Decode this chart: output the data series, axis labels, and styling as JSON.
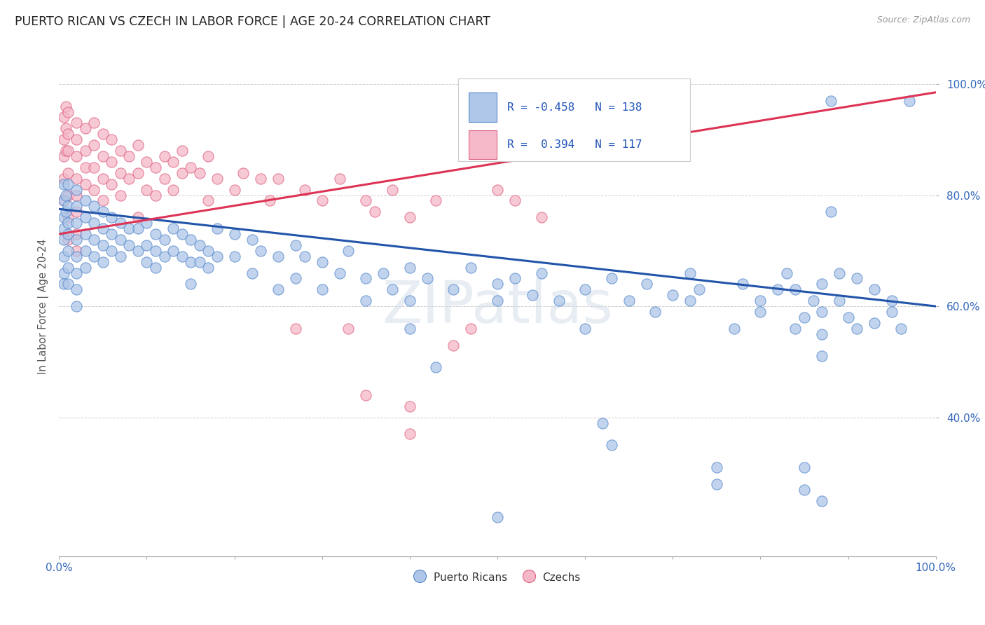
{
  "title": "PUERTO RICAN VS CZECH IN LABOR FORCE | AGE 20-24 CORRELATION CHART",
  "source_text": "Source: ZipAtlas.com",
  "ylabel": "In Labor Force | Age 20-24",
  "xlim": [
    0.0,
    1.0
  ],
  "ylim": [
    0.15,
    1.05
  ],
  "blue_color": "#aec6e8",
  "pink_color": "#f4b8c8",
  "blue_edge": "#5588cc",
  "pink_edge": "#e06080",
  "blue_line_color": "#2255aa",
  "pink_line_color": "#dd3355",
  "r_blue": -0.458,
  "n_blue": 138,
  "r_pink": 0.394,
  "n_pink": 117,
  "watermark": "ZIPatlas",
  "bg_color": "#ffffff",
  "grid_color": "#bbbbbb",
  "blue_scatter": [
    [
      0.005,
      0.82
    ],
    [
      0.005,
      0.79
    ],
    [
      0.005,
      0.76
    ],
    [
      0.005,
      0.74
    ],
    [
      0.005,
      0.72
    ],
    [
      0.005,
      0.69
    ],
    [
      0.005,
      0.66
    ],
    [
      0.005,
      0.64
    ],
    [
      0.008,
      0.8
    ],
    [
      0.008,
      0.77
    ],
    [
      0.01,
      0.82
    ],
    [
      0.01,
      0.78
    ],
    [
      0.01,
      0.75
    ],
    [
      0.01,
      0.73
    ],
    [
      0.01,
      0.7
    ],
    [
      0.01,
      0.67
    ],
    [
      0.01,
      0.64
    ],
    [
      0.02,
      0.81
    ],
    [
      0.02,
      0.78
    ],
    [
      0.02,
      0.75
    ],
    [
      0.02,
      0.72
    ],
    [
      0.02,
      0.69
    ],
    [
      0.02,
      0.66
    ],
    [
      0.02,
      0.63
    ],
    [
      0.02,
      0.6
    ],
    [
      0.03,
      0.79
    ],
    [
      0.03,
      0.76
    ],
    [
      0.03,
      0.73
    ],
    [
      0.03,
      0.7
    ],
    [
      0.03,
      0.67
    ],
    [
      0.04,
      0.78
    ],
    [
      0.04,
      0.75
    ],
    [
      0.04,
      0.72
    ],
    [
      0.04,
      0.69
    ],
    [
      0.05,
      0.77
    ],
    [
      0.05,
      0.74
    ],
    [
      0.05,
      0.71
    ],
    [
      0.05,
      0.68
    ],
    [
      0.06,
      0.76
    ],
    [
      0.06,
      0.73
    ],
    [
      0.06,
      0.7
    ],
    [
      0.07,
      0.75
    ],
    [
      0.07,
      0.72
    ],
    [
      0.07,
      0.69
    ],
    [
      0.08,
      0.74
    ],
    [
      0.08,
      0.71
    ],
    [
      0.09,
      0.74
    ],
    [
      0.09,
      0.7
    ],
    [
      0.1,
      0.75
    ],
    [
      0.1,
      0.71
    ],
    [
      0.1,
      0.68
    ],
    [
      0.11,
      0.73
    ],
    [
      0.11,
      0.7
    ],
    [
      0.11,
      0.67
    ],
    [
      0.12,
      0.72
    ],
    [
      0.12,
      0.69
    ],
    [
      0.13,
      0.74
    ],
    [
      0.13,
      0.7
    ],
    [
      0.14,
      0.73
    ],
    [
      0.14,
      0.69
    ],
    [
      0.15,
      0.72
    ],
    [
      0.15,
      0.68
    ],
    [
      0.15,
      0.64
    ],
    [
      0.16,
      0.71
    ],
    [
      0.16,
      0.68
    ],
    [
      0.17,
      0.7
    ],
    [
      0.17,
      0.67
    ],
    [
      0.18,
      0.74
    ],
    [
      0.18,
      0.69
    ],
    [
      0.2,
      0.73
    ],
    [
      0.2,
      0.69
    ],
    [
      0.22,
      0.72
    ],
    [
      0.22,
      0.66
    ],
    [
      0.23,
      0.7
    ],
    [
      0.25,
      0.69
    ],
    [
      0.25,
      0.63
    ],
    [
      0.27,
      0.71
    ],
    [
      0.27,
      0.65
    ],
    [
      0.28,
      0.69
    ],
    [
      0.3,
      0.68
    ],
    [
      0.3,
      0.63
    ],
    [
      0.32,
      0.66
    ],
    [
      0.33,
      0.7
    ],
    [
      0.35,
      0.65
    ],
    [
      0.35,
      0.61
    ],
    [
      0.37,
      0.66
    ],
    [
      0.38,
      0.63
    ],
    [
      0.4,
      0.67
    ],
    [
      0.4,
      0.61
    ],
    [
      0.4,
      0.56
    ],
    [
      0.42,
      0.65
    ],
    [
      0.43,
      0.49
    ],
    [
      0.45,
      0.63
    ],
    [
      0.47,
      0.67
    ],
    [
      0.5,
      0.64
    ],
    [
      0.5,
      0.61
    ],
    [
      0.52,
      0.65
    ],
    [
      0.54,
      0.62
    ],
    [
      0.55,
      0.66
    ],
    [
      0.57,
      0.61
    ],
    [
      0.6,
      0.63
    ],
    [
      0.6,
      0.56
    ],
    [
      0.62,
      0.39
    ],
    [
      0.63,
      0.65
    ],
    [
      0.65,
      0.61
    ],
    [
      0.67,
      0.64
    ],
    [
      0.68,
      0.59
    ],
    [
      0.7,
      0.62
    ],
    [
      0.72,
      0.66
    ],
    [
      0.72,
      0.61
    ],
    [
      0.73,
      0.63
    ],
    [
      0.75,
      0.31
    ],
    [
      0.77,
      0.56
    ],
    [
      0.78,
      0.64
    ],
    [
      0.8,
      0.61
    ],
    [
      0.8,
      0.59
    ],
    [
      0.82,
      0.63
    ],
    [
      0.83,
      0.66
    ],
    [
      0.84,
      0.56
    ],
    [
      0.84,
      0.63
    ],
    [
      0.85,
      0.58
    ],
    [
      0.85,
      0.31
    ],
    [
      0.86,
      0.61
    ],
    [
      0.87,
      0.64
    ],
    [
      0.87,
      0.59
    ],
    [
      0.87,
      0.55
    ],
    [
      0.87,
      0.51
    ],
    [
      0.88,
      0.97
    ],
    [
      0.88,
      0.77
    ],
    [
      0.89,
      0.66
    ],
    [
      0.89,
      0.61
    ],
    [
      0.9,
      0.58
    ],
    [
      0.91,
      0.65
    ],
    [
      0.91,
      0.56
    ],
    [
      0.93,
      0.63
    ],
    [
      0.93,
      0.57
    ],
    [
      0.95,
      0.61
    ],
    [
      0.95,
      0.59
    ],
    [
      0.96,
      0.56
    ],
    [
      0.97,
      0.97
    ],
    [
      0.5,
      0.22
    ],
    [
      0.63,
      0.35
    ],
    [
      0.75,
      0.28
    ],
    [
      0.85,
      0.27
    ],
    [
      0.87,
      0.25
    ]
  ],
  "pink_scatter": [
    [
      0.005,
      0.94
    ],
    [
      0.005,
      0.9
    ],
    [
      0.005,
      0.87
    ],
    [
      0.005,
      0.83
    ],
    [
      0.005,
      0.79
    ],
    [
      0.008,
      0.96
    ],
    [
      0.008,
      0.92
    ],
    [
      0.008,
      0.88
    ],
    [
      0.01,
      0.95
    ],
    [
      0.01,
      0.91
    ],
    [
      0.01,
      0.88
    ],
    [
      0.01,
      0.84
    ],
    [
      0.01,
      0.8
    ],
    [
      0.01,
      0.76
    ],
    [
      0.01,
      0.72
    ],
    [
      0.02,
      0.93
    ],
    [
      0.02,
      0.9
    ],
    [
      0.02,
      0.87
    ],
    [
      0.02,
      0.83
    ],
    [
      0.02,
      0.8
    ],
    [
      0.02,
      0.77
    ],
    [
      0.02,
      0.73
    ],
    [
      0.02,
      0.7
    ],
    [
      0.03,
      0.92
    ],
    [
      0.03,
      0.88
    ],
    [
      0.03,
      0.85
    ],
    [
      0.03,
      0.82
    ],
    [
      0.04,
      0.93
    ],
    [
      0.04,
      0.89
    ],
    [
      0.04,
      0.85
    ],
    [
      0.04,
      0.81
    ],
    [
      0.05,
      0.91
    ],
    [
      0.05,
      0.87
    ],
    [
      0.05,
      0.83
    ],
    [
      0.05,
      0.79
    ],
    [
      0.06,
      0.9
    ],
    [
      0.06,
      0.86
    ],
    [
      0.06,
      0.82
    ],
    [
      0.07,
      0.88
    ],
    [
      0.07,
      0.84
    ],
    [
      0.07,
      0.8
    ],
    [
      0.08,
      0.87
    ],
    [
      0.08,
      0.83
    ],
    [
      0.09,
      0.89
    ],
    [
      0.09,
      0.84
    ],
    [
      0.09,
      0.76
    ],
    [
      0.1,
      0.86
    ],
    [
      0.1,
      0.81
    ],
    [
      0.11,
      0.85
    ],
    [
      0.11,
      0.8
    ],
    [
      0.12,
      0.87
    ],
    [
      0.12,
      0.83
    ],
    [
      0.13,
      0.86
    ],
    [
      0.13,
      0.81
    ],
    [
      0.14,
      0.88
    ],
    [
      0.14,
      0.84
    ],
    [
      0.15,
      0.85
    ],
    [
      0.16,
      0.84
    ],
    [
      0.17,
      0.87
    ],
    [
      0.17,
      0.79
    ],
    [
      0.18,
      0.83
    ],
    [
      0.2,
      0.81
    ],
    [
      0.21,
      0.84
    ],
    [
      0.23,
      0.83
    ],
    [
      0.24,
      0.79
    ],
    [
      0.25,
      0.83
    ],
    [
      0.27,
      0.56
    ],
    [
      0.28,
      0.81
    ],
    [
      0.3,
      0.79
    ],
    [
      0.32,
      0.83
    ],
    [
      0.33,
      0.56
    ],
    [
      0.35,
      0.79
    ],
    [
      0.36,
      0.77
    ],
    [
      0.38,
      0.81
    ],
    [
      0.4,
      0.76
    ],
    [
      0.43,
      0.79
    ],
    [
      0.45,
      0.53
    ],
    [
      0.47,
      0.56
    ],
    [
      0.5,
      0.81
    ],
    [
      0.52,
      0.79
    ],
    [
      0.55,
      0.76
    ],
    [
      0.35,
      0.44
    ],
    [
      0.4,
      0.42
    ],
    [
      0.4,
      0.37
    ]
  ]
}
